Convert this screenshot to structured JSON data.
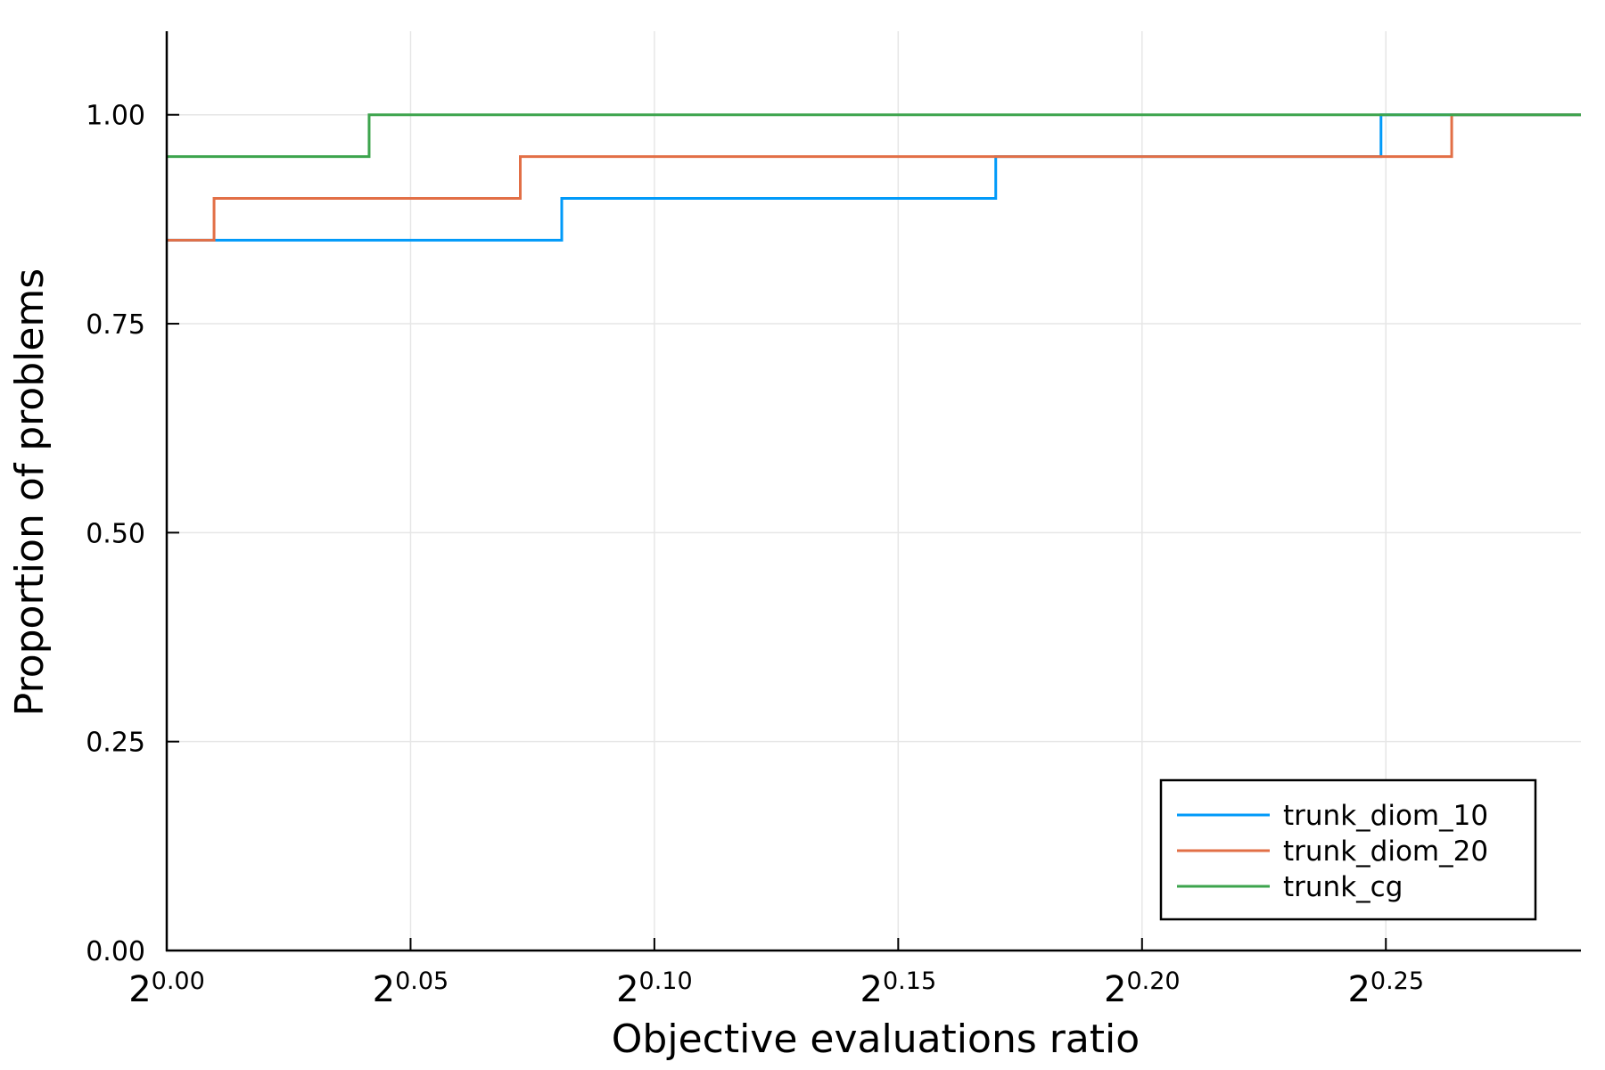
{
  "chart_data": {
    "type": "line",
    "step": true,
    "xlabel": "Objective evaluations ratio",
    "ylabel": "Proportion of problems",
    "x_scale": "log2",
    "xlim": [
      0.0,
      0.29
    ],
    "ylim": [
      0.0,
      1.1
    ],
    "x_ticks": [
      {
        "base": "2",
        "exp": "0.00",
        "value": 0.0
      },
      {
        "base": "2",
        "exp": "0.05",
        "value": 0.05
      },
      {
        "base": "2",
        "exp": "0.10",
        "value": 0.1
      },
      {
        "base": "2",
        "exp": "0.15",
        "value": 0.15
      },
      {
        "base": "2",
        "exp": "0.20",
        "value": 0.2
      },
      {
        "base": "2",
        "exp": "0.25",
        "value": 0.25
      }
    ],
    "y_ticks": [
      {
        "label": "0.00",
        "value": 0.0
      },
      {
        "label": "0.25",
        "value": 0.25
      },
      {
        "label": "0.50",
        "value": 0.5
      },
      {
        "label": "0.75",
        "value": 0.75
      },
      {
        "label": "1.00",
        "value": 1.0
      }
    ],
    "grid": true,
    "legend": "bottom-right",
    "series": [
      {
        "name": "trunk_diom_10",
        "color": "#009af9",
        "points": [
          [
            0.0,
            0.85
          ],
          [
            0.081,
            0.85
          ],
          [
            0.081,
            0.9
          ],
          [
            0.17,
            0.9
          ],
          [
            0.17,
            0.95
          ],
          [
            0.249,
            0.95
          ],
          [
            0.249,
            1.0
          ],
          [
            0.29,
            1.0
          ]
        ]
      },
      {
        "name": "trunk_diom_20",
        "color": "#e26f46",
        "points": [
          [
            0.0,
            0.85
          ],
          [
            0.0097,
            0.85
          ],
          [
            0.0097,
            0.9
          ],
          [
            0.0725,
            0.9
          ],
          [
            0.0725,
            0.95
          ],
          [
            0.2635,
            0.95
          ],
          [
            0.2635,
            1.0
          ],
          [
            0.29,
            1.0
          ]
        ]
      },
      {
        "name": "trunk_cg",
        "color": "#3da44d",
        "points": [
          [
            0.0,
            0.95
          ],
          [
            0.0415,
            0.95
          ],
          [
            0.0415,
            1.0
          ],
          [
            0.29,
            1.0
          ]
        ]
      }
    ]
  }
}
